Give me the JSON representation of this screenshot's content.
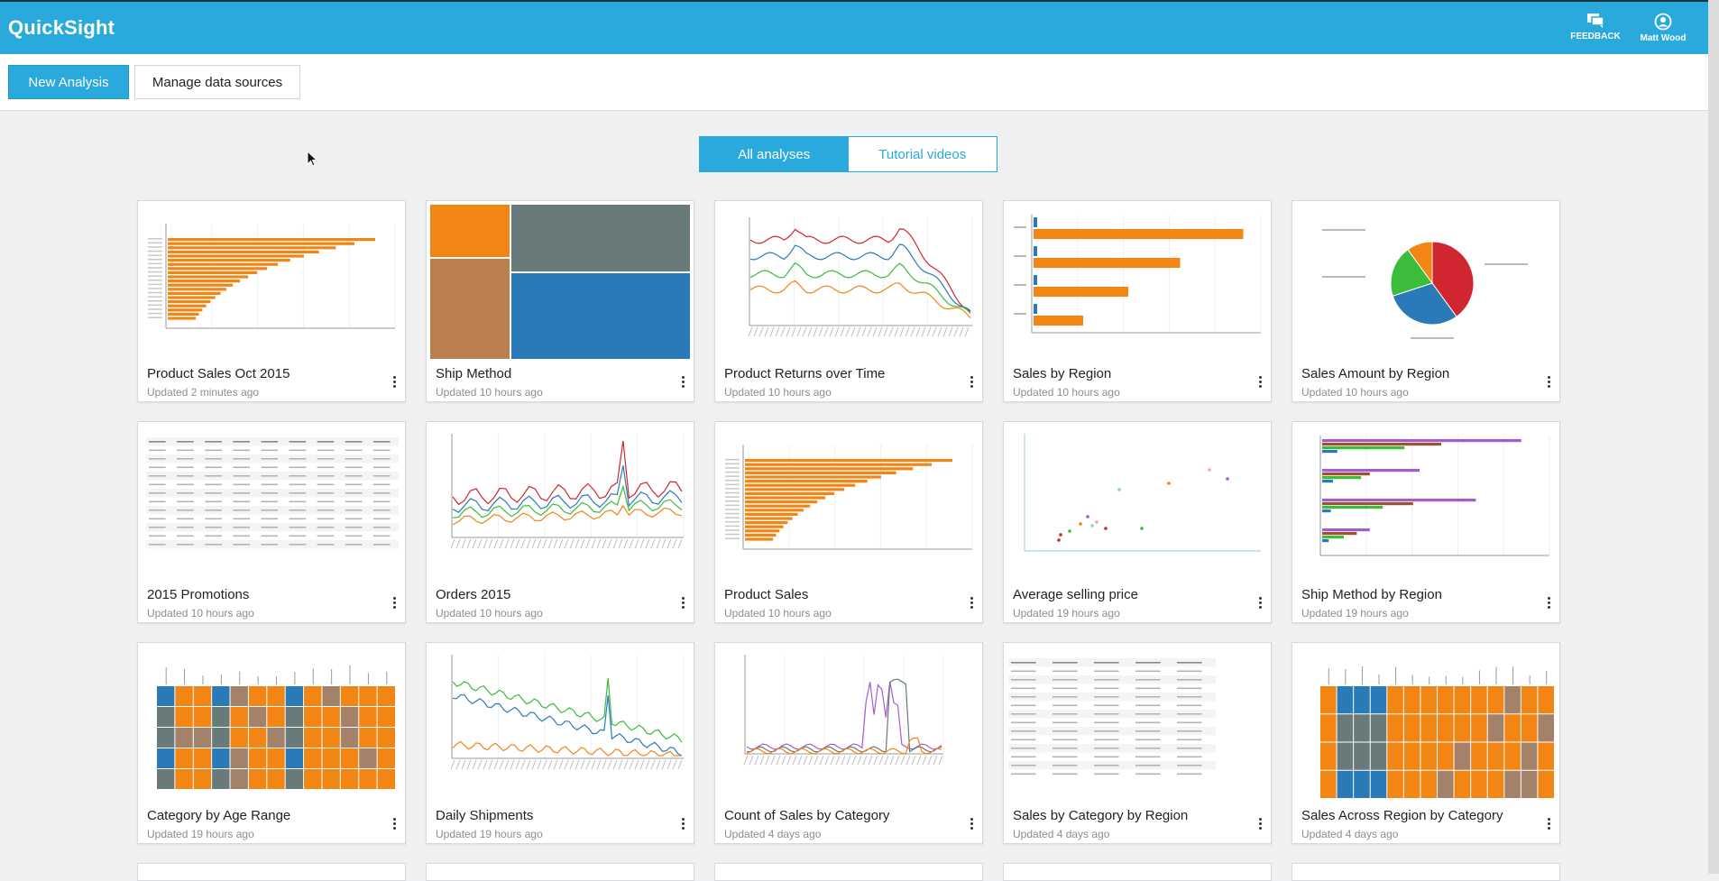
{
  "header": {
    "logo": "QuickSight",
    "feedback_label": "FEEDBACK",
    "user_label": "Matt Wood"
  },
  "toolbar": {
    "new_analysis": "New Analysis",
    "manage_sources": "Manage data sources"
  },
  "view_toggle": {
    "all": "All analyses",
    "tutorials": "Tutorial videos",
    "selected": "All analyses"
  },
  "colors": {
    "brand": "#29a9dc",
    "orange": "#f28513",
    "blue": "#2a7ab7",
    "gray": "#687a7a",
    "red": "#d0262f",
    "green": "#3bbc3a",
    "purple": "#a55bd0"
  },
  "analyses": [
    {
      "title": "Product Sales Oct 2015",
      "updated": "Updated 2 minutes ago",
      "thumb": "hbar-orange"
    },
    {
      "title": "Ship Method",
      "updated": "Updated 10 hours ago",
      "thumb": "treemap"
    },
    {
      "title": "Product Returns over Time",
      "updated": "Updated 10 hours ago",
      "thumb": "multiline-returns"
    },
    {
      "title": "Sales by Region",
      "updated": "Updated 10 hours ago",
      "thumb": "hbar-region"
    },
    {
      "title": "Sales Amount by Region",
      "updated": "Updated 10 hours ago",
      "thumb": "pie"
    },
    {
      "title": "2015 Promotions",
      "updated": "Updated 10 hours ago",
      "thumb": "table"
    },
    {
      "title": "Orders 2015",
      "updated": "Updated 10 hours ago",
      "thumb": "multiline-orders"
    },
    {
      "title": "Product Sales",
      "updated": "Updated 10 hours ago",
      "thumb": "hbar-orange"
    },
    {
      "title": "Average selling price",
      "updated": "Updated 19 hours ago",
      "thumb": "scatter"
    },
    {
      "title": "Ship Method by Region",
      "updated": "Updated 19 hours ago",
      "thumb": "hbar-grouped"
    },
    {
      "title": "Category by Age Range",
      "updated": "Updated 19 hours ago",
      "thumb": "heatmap"
    },
    {
      "title": "Daily Shipments",
      "updated": "Updated 19 hours ago",
      "thumb": "multiline-shipments"
    },
    {
      "title": "Count of Sales by Category",
      "updated": "Updated 4 days ago",
      "thumb": "line-category"
    },
    {
      "title": "Sales by Category by Region",
      "updated": "Updated 4 days ago",
      "thumb": "table-region"
    },
    {
      "title": "Sales Across Region by Category",
      "updated": "Updated 4 days ago",
      "thumb": "heatmap-region"
    }
  ]
}
